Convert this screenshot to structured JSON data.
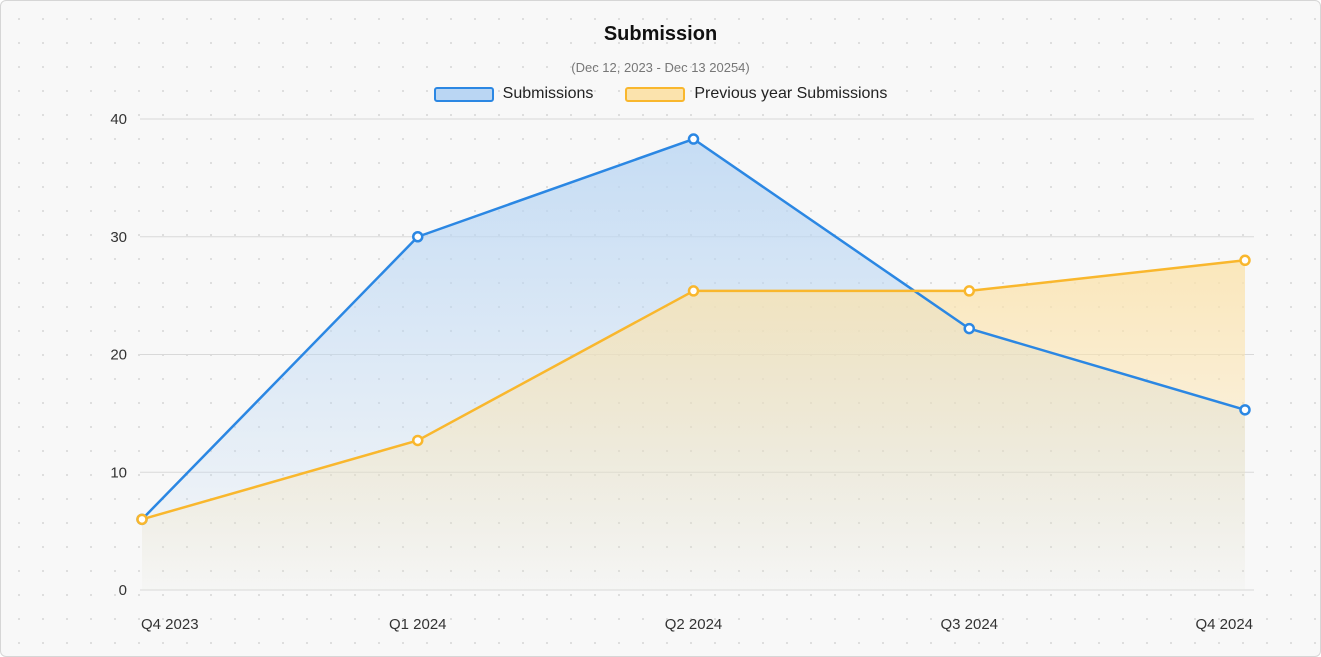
{
  "chart_data": {
    "type": "area",
    "title": "Submission",
    "subtitle": "(Dec 12, 2023 - Dec 13 20254)",
    "categories": [
      "Q4 2023",
      "Q1 2024",
      "Q2 2024",
      "Q3 2024",
      "Q4 2024"
    ],
    "ylim": [
      0,
      40
    ],
    "yticks": [
      "0",
      "10",
      "20",
      "30",
      "40"
    ],
    "legend_position": "top-center",
    "grid": true,
    "series": [
      {
        "name": "Submissions",
        "values": [
          6,
          30,
          38.3,
          22.2,
          15.3
        ],
        "color": "#2b87e3",
        "fill": "#bad6f3"
      },
      {
        "name": "Previous year Submissions",
        "values": [
          6,
          12.7,
          25.4,
          25.4,
          28
        ],
        "color": "#f9b72d",
        "fill": "#fbe3ad"
      }
    ]
  }
}
